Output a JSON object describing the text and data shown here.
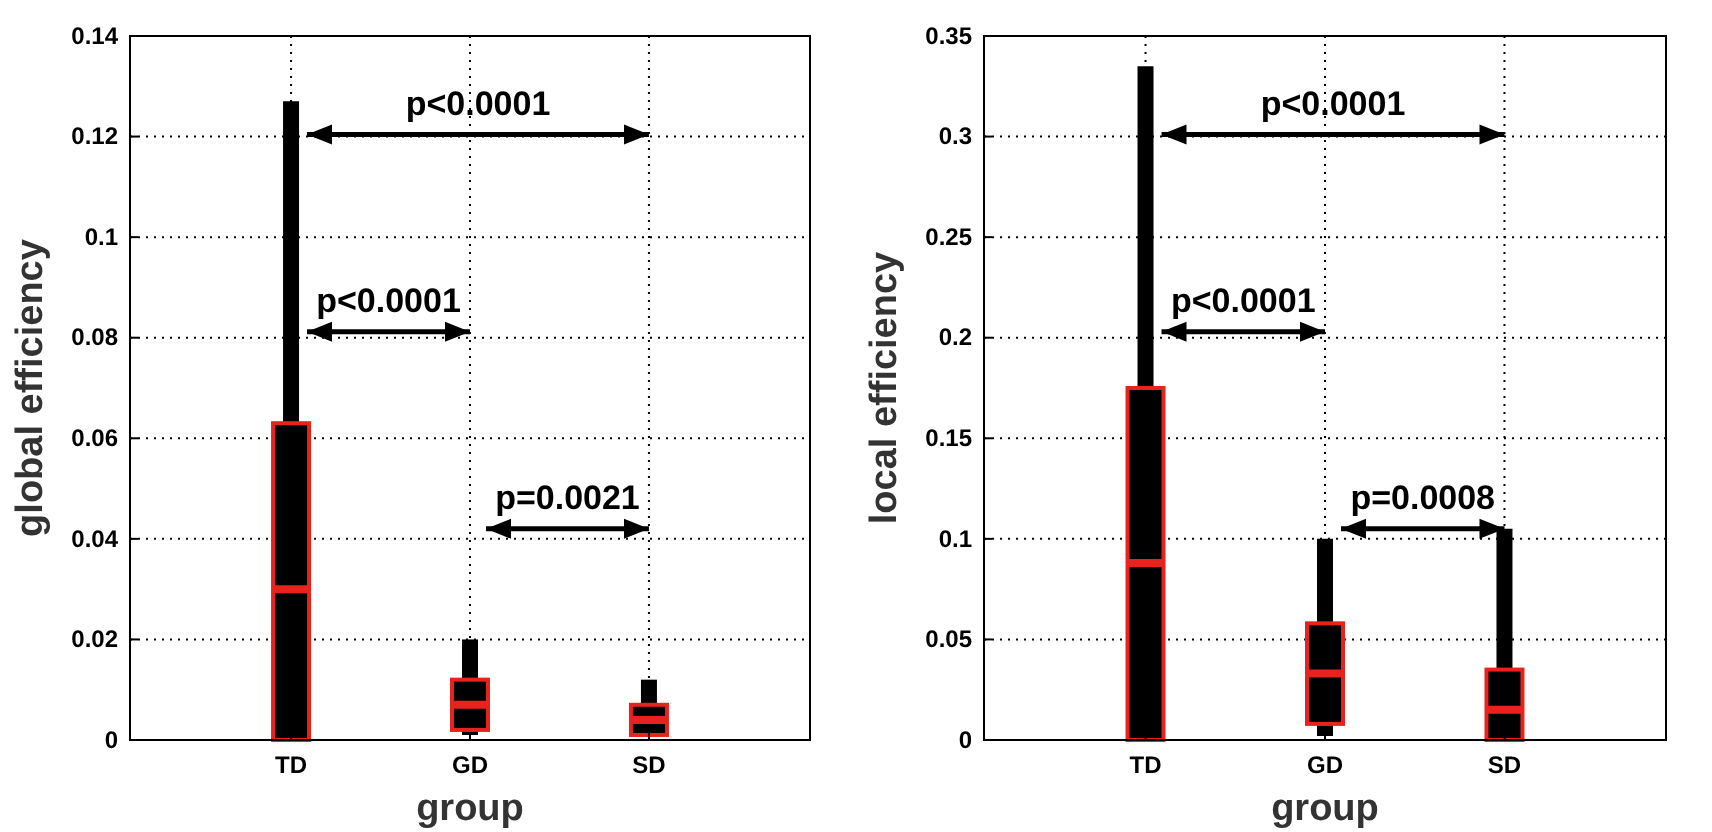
{
  "chart_data": [
    {
      "type": "box",
      "xlabel": "group",
      "ylabel": "global efficiency",
      "categories": [
        "TD",
        "GD",
        "SD"
      ],
      "ylim": [
        0,
        0.14
      ],
      "yticks": [
        0,
        0.02,
        0.04,
        0.06,
        0.08,
        0.1,
        0.12,
        0.14
      ],
      "grid": true,
      "boxes": [
        {
          "low": 0,
          "q1": 0,
          "median": 0.03,
          "q3": 0.063,
          "high": 0.127
        },
        {
          "low": 0.001,
          "q1": 0.002,
          "median": 0.007,
          "q3": 0.012,
          "high": 0.02
        },
        {
          "low": 0.001,
          "q1": 0.001,
          "median": 0.004,
          "q3": 0.007,
          "high": 0.012
        }
      ],
      "annotations": [
        "p<0.0001",
        "p<0.0001",
        "p=0.0021"
      ]
    },
    {
      "type": "box",
      "xlabel": "group",
      "ylabel": "local efficiency",
      "categories": [
        "TD",
        "GD",
        "SD"
      ],
      "ylim": [
        0,
        0.35
      ],
      "yticks": [
        0,
        0.05,
        0.1,
        0.15,
        0.2,
        0.25,
        0.3,
        0.35
      ],
      "grid": true,
      "boxes": [
        {
          "low": 0,
          "q1": 0,
          "median": 0.088,
          "q3": 0.175,
          "high": 0.335
        },
        {
          "low": 0.002,
          "q1": 0.008,
          "median": 0.033,
          "q3": 0.058,
          "high": 0.1
        },
        {
          "low": 0,
          "q1": 0,
          "median": 0.015,
          "q3": 0.035,
          "high": 0.105
        }
      ],
      "annotations": [
        "p<0.0001",
        "p<0.0001",
        "p=0.0008"
      ]
    }
  ]
}
